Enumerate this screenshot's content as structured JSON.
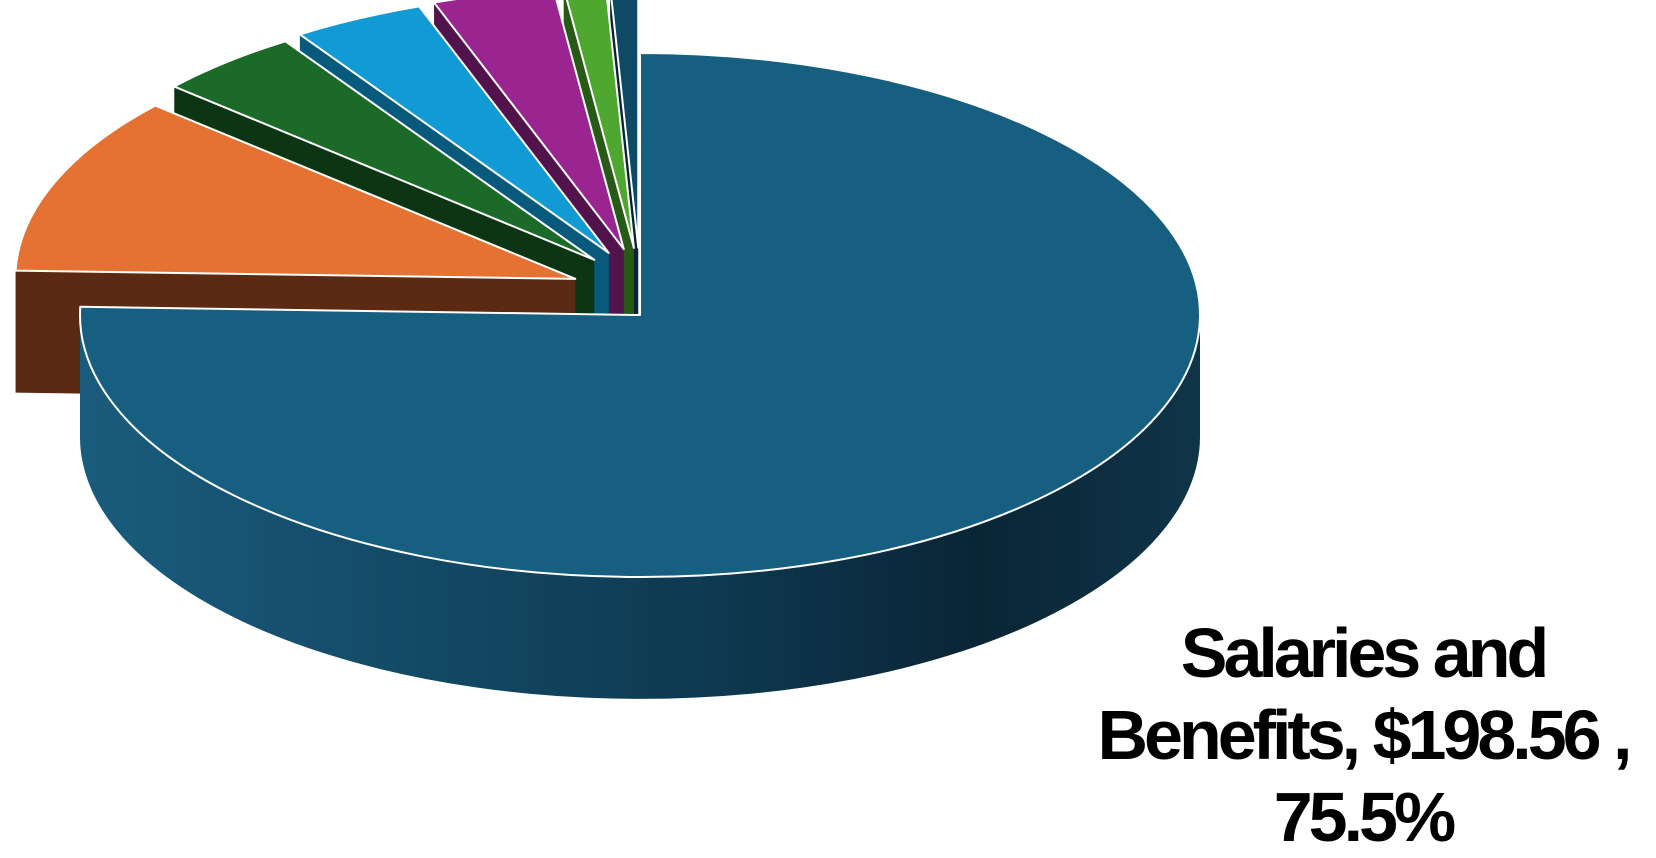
{
  "chart_data": {
    "type": "pie",
    "title": "",
    "style": "3d-exploded",
    "legend": "none",
    "slices": [
      {
        "label": "Salaries and Benefits",
        "value": 198.56,
        "percent": 75.5,
        "color": "#175F80",
        "side_color": "#0E3A50",
        "value_text": "$198.56",
        "percent_text": "75.5%"
      },
      {
        "label": "",
        "percent": 11.0,
        "color": "#E57232",
        "side_color": "#5C2A12"
      },
      {
        "label": "",
        "percent": 4.2,
        "color": "#1B6A27",
        "side_color": "#0C3514"
      },
      {
        "label": "",
        "percent": 3.8,
        "color": "#119AD4",
        "side_color": "#075A7C"
      },
      {
        "label": "",
        "percent": 3.5,
        "color": "#9B2590",
        "side_color": "#52124B"
      },
      {
        "label": "",
        "percent": 1.2,
        "color": "#4EA72E",
        "side_color": "#275A16"
      },
      {
        "label": "",
        "percent": 0.8,
        "color": "#0E4A66",
        "side_color": "#062432"
      }
    ]
  }
}
